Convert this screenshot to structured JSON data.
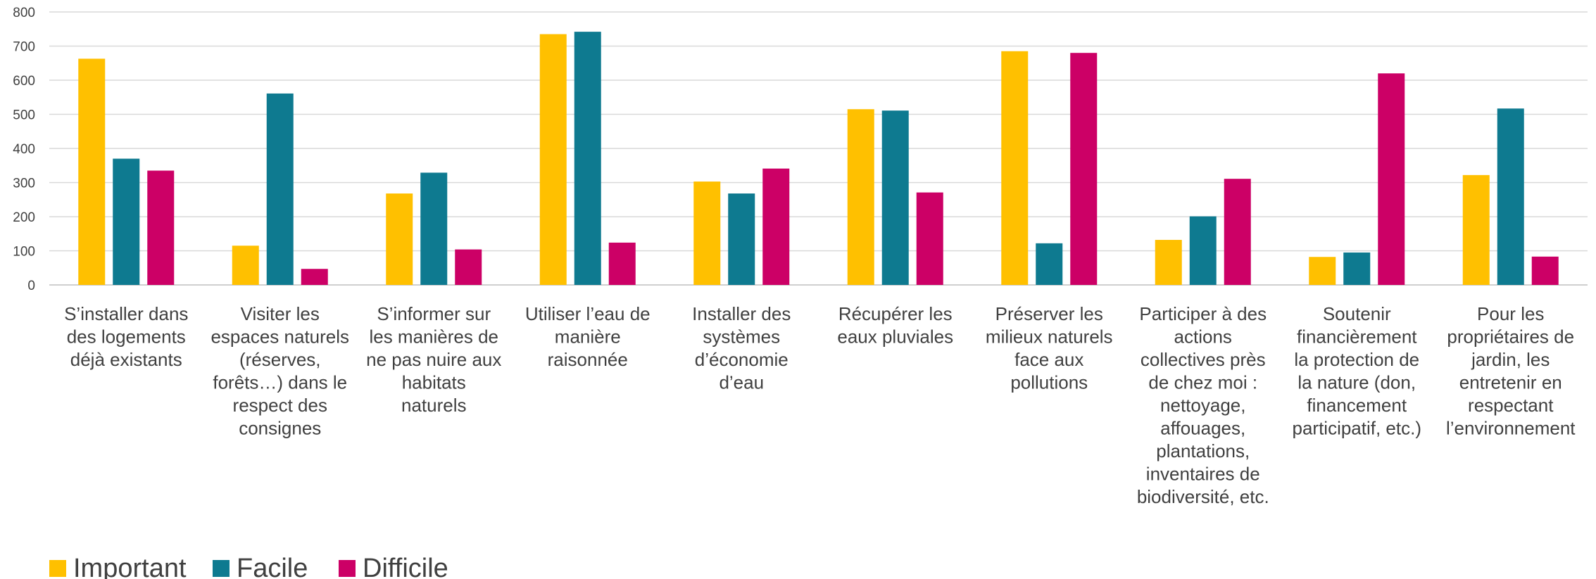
{
  "chart_data": {
    "type": "bar",
    "title": "",
    "xlabel": "",
    "ylabel": "",
    "ylim": [
      0,
      800
    ],
    "yticks": [
      0,
      100,
      200,
      300,
      400,
      500,
      600,
      700,
      800
    ],
    "grid": true,
    "legend_position": "bottom-left",
    "categories": [
      [
        "S’installer dans",
        "des logements",
        "déjà existants"
      ],
      [
        "Visiter les",
        "espaces naturels",
        "(réserves,",
        "forêts…) dans le",
        "respect des",
        "consignes"
      ],
      [
        "S’informer sur",
        "les manières de",
        "ne pas nuire aux",
        "habitats",
        "naturels"
      ],
      [
        "Utiliser l’eau de",
        "manière",
        "raisonnée"
      ],
      [
        "Installer des",
        "systèmes",
        "d’économie",
        "d’eau"
      ],
      [
        "Récupérer les",
        "eaux pluviales"
      ],
      [
        "Préserver les",
        "milieux naturels",
        "face aux",
        "pollutions"
      ],
      [
        "Participer à des",
        "actions",
        "collectives près",
        "de chez moi :",
        "nettoyage,",
        "affouages,",
        "plantations,",
        "inventaires de",
        "biodiversité, etc."
      ],
      [
        "Soutenir",
        "financièrement",
        "la protection de",
        "la nature (don,",
        "financement",
        "participatif, etc.)"
      ],
      [
        "Pour les",
        "propriétaires de",
        "jardin, les",
        "entretenir en",
        "respectant",
        "l’environnement"
      ]
    ],
    "series": [
      {
        "name": "Important",
        "color": "#FFC000",
        "values": [
          663,
          115,
          268,
          735,
          303,
          515,
          685,
          132,
          82,
          322
        ]
      },
      {
        "name": "Facile",
        "color": "#0E7A90",
        "values": [
          370,
          561,
          329,
          742,
          268,
          511,
          122,
          201,
          95,
          517
        ]
      },
      {
        "name": "Difficile",
        "color": "#CC0066",
        "values": [
          335,
          47,
          104,
          124,
          341,
          271,
          680,
          311,
          620,
          83
        ]
      }
    ]
  }
}
